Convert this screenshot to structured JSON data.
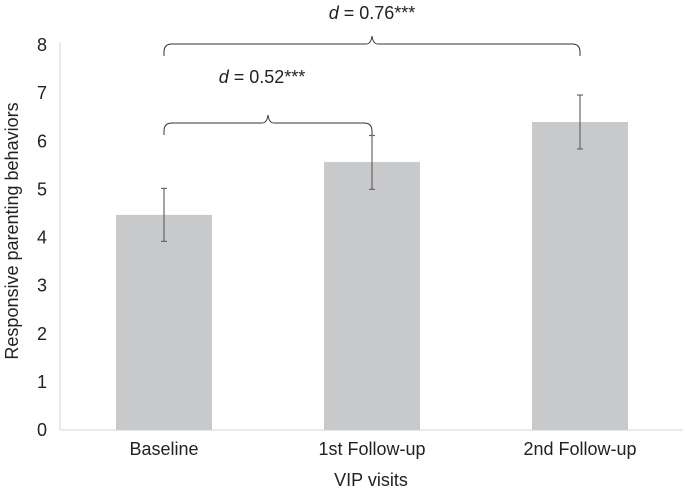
{
  "chart_data": {
    "type": "bar",
    "categories": [
      "Baseline",
      "1st Follow-up",
      "2nd Follow-up"
    ],
    "values": [
      4.47,
      5.57,
      6.4
    ],
    "error_low": [
      3.92,
      5.0,
      5.84
    ],
    "error_high": [
      5.02,
      6.12,
      6.96
    ],
    "xlabel": "VIP visits",
    "ylabel": "Responsive parenting behaviors",
    "ylim": [
      0,
      8
    ],
    "yticks": [
      "0",
      "1",
      "2",
      "3",
      "4",
      "5",
      "6",
      "7",
      "8"
    ],
    "grid": false,
    "bar_color": "#c8c9cb",
    "error_color": "#666666",
    "annotations": [
      {
        "from": 0,
        "to": 1,
        "italic": "d",
        "text": " = 0.52***"
      },
      {
        "from": 0,
        "to": 2,
        "italic": "d",
        "text": " = 0.76***"
      }
    ]
  }
}
